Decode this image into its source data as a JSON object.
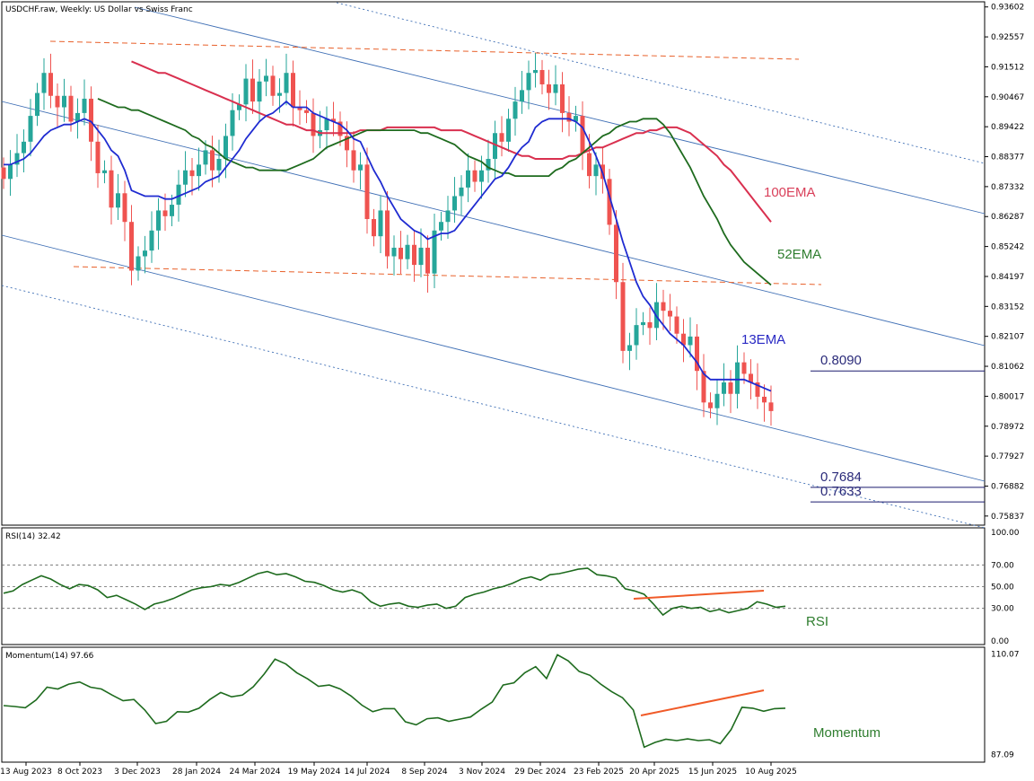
{
  "chart_data": [
    {
      "type": "candlestick",
      "title": "USDCHF.raw, Weekly:  US Dollar vs Swiss Franc",
      "y_ticks": [
        "0.93602",
        "0.92557",
        "0.91512",
        "0.90467",
        "0.89422",
        "0.88377",
        "0.87332",
        "0.86287",
        "0.85242",
        "0.84197",
        "0.83152",
        "0.82107",
        "0.81062",
        "0.80017",
        "0.78972",
        "0.77927",
        "0.76882",
        "0.75837"
      ],
      "ylim": [
        0.7555,
        0.9375
      ],
      "x_ticks": [
        "13 Aug 2023",
        "8 Oct 2023",
        "3 Dec 2023",
        "28 Jan 2024",
        "24 Mar 2024",
        "19 May 2024",
        "14 Jul 2024",
        "8 Sep 2024",
        "3 Nov 2024",
        "29 Dec 2024",
        "23 Feb 2025",
        "20 Apr 2025",
        "15 Jun 2025",
        "10 Aug 2025"
      ],
      "close": [
        0.876,
        0.881,
        0.885,
        0.889,
        0.898,
        0.906,
        0.913,
        0.905,
        0.901,
        0.905,
        0.896,
        0.899,
        0.904,
        0.889,
        0.878,
        0.879,
        0.866,
        0.871,
        0.861,
        0.844,
        0.849,
        0.851,
        0.858,
        0.865,
        0.863,
        0.867,
        0.874,
        0.879,
        0.877,
        0.881,
        0.886,
        0.879,
        0.883,
        0.891,
        0.9,
        0.902,
        0.911,
        0.903,
        0.91,
        0.912,
        0.905,
        0.906,
        0.913,
        0.901,
        0.9,
        0.899,
        0.891,
        0.893,
        0.897,
        0.896,
        0.891,
        0.886,
        0.879,
        0.881,
        0.862,
        0.856,
        0.865,
        0.849,
        0.852,
        0.848,
        0.853,
        0.846,
        0.852,
        0.843,
        0.858,
        0.861,
        0.865,
        0.87,
        0.873,
        0.879,
        0.875,
        0.879,
        0.883,
        0.892,
        0.889,
        0.897,
        0.903,
        0.907,
        0.913,
        0.914,
        0.909,
        0.906,
        0.909,
        0.899,
        0.896,
        0.898,
        0.885,
        0.877,
        0.881,
        0.876,
        0.86,
        0.84,
        0.816,
        0.818,
        0.825,
        0.826,
        0.824,
        0.833,
        0.83,
        0.828,
        0.822,
        0.818,
        0.821,
        0.809,
        0.798,
        0.796,
        0.801,
        0.805,
        0.801,
        0.812,
        0.808,
        0.805,
        0.8,
        0.798,
        0.795
      ],
      "ema13": [
        0.881,
        0.881,
        0.882,
        0.883,
        0.885,
        0.888,
        0.891,
        0.893,
        0.894,
        0.895,
        0.895,
        0.896,
        0.897,
        0.896,
        0.893,
        0.89,
        0.886,
        0.884,
        0.879,
        0.872,
        0.871,
        0.87,
        0.87,
        0.87,
        0.869,
        0.869,
        0.87,
        0.871,
        0.872,
        0.873,
        0.875,
        0.876,
        0.877,
        0.88,
        0.883,
        0.886,
        0.89,
        0.893,
        0.896,
        0.898,
        0.899,
        0.901,
        0.903,
        0.901,
        0.901,
        0.901,
        0.899,
        0.898,
        0.897,
        0.896,
        0.895,
        0.893,
        0.89,
        0.889,
        0.884,
        0.879,
        0.875,
        0.87,
        0.866,
        0.862,
        0.86,
        0.858,
        0.857,
        0.855,
        0.856,
        0.857,
        0.857,
        0.858,
        0.861,
        0.864,
        0.867,
        0.87,
        0.873,
        0.876,
        0.877,
        0.88,
        0.884,
        0.887,
        0.889,
        0.894,
        0.896,
        0.897,
        0.897,
        0.897,
        0.897,
        0.896,
        0.894,
        0.889,
        0.884,
        0.878,
        0.87,
        0.862,
        0.854,
        0.847,
        0.84,
        0.835,
        0.832,
        0.828,
        0.825,
        0.822,
        0.82,
        0.818,
        0.815,
        0.812,
        0.808,
        0.806,
        0.806,
        0.806,
        0.806,
        0.806,
        0.806,
        0.805,
        0.804,
        0.803,
        0.802
      ],
      "ema52": [
        0.904,
        0.903,
        0.902,
        0.901,
        0.901,
        0.9,
        0.9,
        0.899,
        0.898,
        0.897,
        0.896,
        0.895,
        0.894,
        0.893,
        0.891,
        0.89,
        0.888,
        0.887,
        0.885,
        0.883,
        0.882,
        0.881,
        0.88,
        0.88,
        0.879,
        0.879,
        0.879,
        0.879,
        0.879,
        0.88,
        0.881,
        0.882,
        0.883,
        0.885,
        0.887,
        0.888,
        0.889,
        0.89,
        0.891,
        0.892,
        0.893,
        0.893,
        0.893,
        0.893,
        0.893,
        0.893,
        0.893,
        0.893,
        0.892,
        0.892,
        0.891,
        0.89,
        0.889,
        0.888,
        0.886,
        0.884,
        0.883,
        0.882,
        0.88,
        0.879,
        0.878,
        0.878,
        0.877,
        0.877,
        0.877,
        0.877,
        0.877,
        0.877,
        0.879,
        0.88,
        0.882,
        0.883,
        0.885,
        0.887,
        0.889,
        0.891,
        0.892,
        0.894,
        0.895,
        0.896,
        0.896,
        0.897,
        0.897,
        0.897,
        0.895,
        0.892,
        0.888,
        0.884,
        0.88,
        0.875,
        0.87,
        0.866,
        0.862,
        0.857,
        0.853,
        0.85,
        0.847,
        0.845,
        0.843,
        0.841,
        0.839
      ],
      "ema100": [
        0.917,
        0.916,
        0.915,
        0.914,
        0.913,
        0.913,
        0.912,
        0.911,
        0.91,
        0.909,
        0.908,
        0.907,
        0.906,
        0.905,
        0.904,
        0.903,
        0.902,
        0.901,
        0.9,
        0.899,
        0.898,
        0.897,
        0.896,
        0.895,
        0.895,
        0.894,
        0.893,
        0.893,
        0.892,
        0.892,
        0.892,
        0.892,
        0.892,
        0.892,
        0.893,
        0.893,
        0.893,
        0.893,
        0.894,
        0.894,
        0.894,
        0.894,
        0.894,
        0.894,
        0.894,
        0.894,
        0.893,
        0.893,
        0.893,
        0.893,
        0.892,
        0.891,
        0.89,
        0.889,
        0.888,
        0.887,
        0.886,
        0.885,
        0.884,
        0.884,
        0.883,
        0.883,
        0.883,
        0.883,
        0.883,
        0.884,
        0.884,
        0.885,
        0.886,
        0.887,
        0.887,
        0.888,
        0.889,
        0.89,
        0.891,
        0.892,
        0.892,
        0.893,
        0.893,
        0.894,
        0.894,
        0.894,
        0.893,
        0.892,
        0.89,
        0.888,
        0.886,
        0.884,
        0.881,
        0.879,
        0.876,
        0.873,
        0.87,
        0.867,
        0.864,
        0.861
      ],
      "annotations": {
        "ema13": "13EMA",
        "ema52": "52EMA",
        "ema100": "100EMA"
      },
      "levels": [
        {
          "label": "0.8090",
          "value": 0.809
        },
        {
          "label": "0.7684",
          "value": 0.7684
        },
        {
          "label": "0.7633",
          "value": 0.7633
        }
      ]
    },
    {
      "type": "line",
      "title": "RSI(14) 32.42",
      "y_ticks": [
        "100.00",
        "70.00",
        "50.00",
        "30.00",
        "0.00"
      ],
      "ylim": [
        0,
        100
      ],
      "values": [
        44,
        46,
        52,
        56,
        60,
        57,
        52,
        48,
        52,
        51,
        47,
        40,
        42,
        38,
        34,
        29,
        34,
        36,
        39,
        43,
        47,
        49,
        50,
        52,
        51,
        54,
        58,
        62,
        64,
        61,
        62,
        59,
        55,
        54,
        51,
        47,
        45,
        47,
        44,
        36,
        32,
        34,
        35,
        32,
        31,
        33,
        34,
        30,
        32,
        40,
        43,
        45,
        48,
        50,
        53,
        57,
        59,
        56,
        61,
        62,
        64,
        66,
        67,
        61,
        60,
        58,
        48,
        46,
        43,
        34,
        24,
        30,
        32,
        30,
        31,
        27,
        29,
        26,
        28,
        30,
        36,
        34,
        31,
        32
      ],
      "annotation": "RSI"
    },
    {
      "type": "line",
      "title": "Momentum(14) 97.66",
      "y_ticks": [
        "110.07",
        "87.09"
      ],
      "ylim": [
        86.2,
        110.6
      ],
      "values": [
        98.3,
        98.1,
        97.8,
        99.6,
        102.5,
        102.1,
        103.2,
        103.7,
        102.5,
        102.1,
        100.7,
        99.4,
        99.7,
        97.3,
        94.2,
        94.7,
        96.9,
        96.8,
        97.7,
        99.7,
        101.3,
        100.3,
        100.7,
        102.6,
        105.5,
        108.9,
        107.8,
        105.8,
        104.4,
        102.7,
        103.0,
        102.1,
        100.5,
        98.4,
        96.9,
        97.6,
        97.6,
        94.6,
        93.9,
        95.3,
        95.5,
        94.7,
        95.2,
        95.7,
        97.5,
        99.1,
        103.0,
        103.5,
        105.8,
        107.2,
        104.5,
        109.9,
        108.5,
        106.1,
        105.2,
        103.2,
        101.5,
        100.1,
        97.3,
        88.8,
        89.9,
        90.6,
        90.3,
        90.7,
        90.3,
        90.5,
        89.6,
        92.8,
        97.9,
        97.7,
        97.0,
        97.6,
        97.7
      ],
      "annotation": "Momentum"
    }
  ]
}
